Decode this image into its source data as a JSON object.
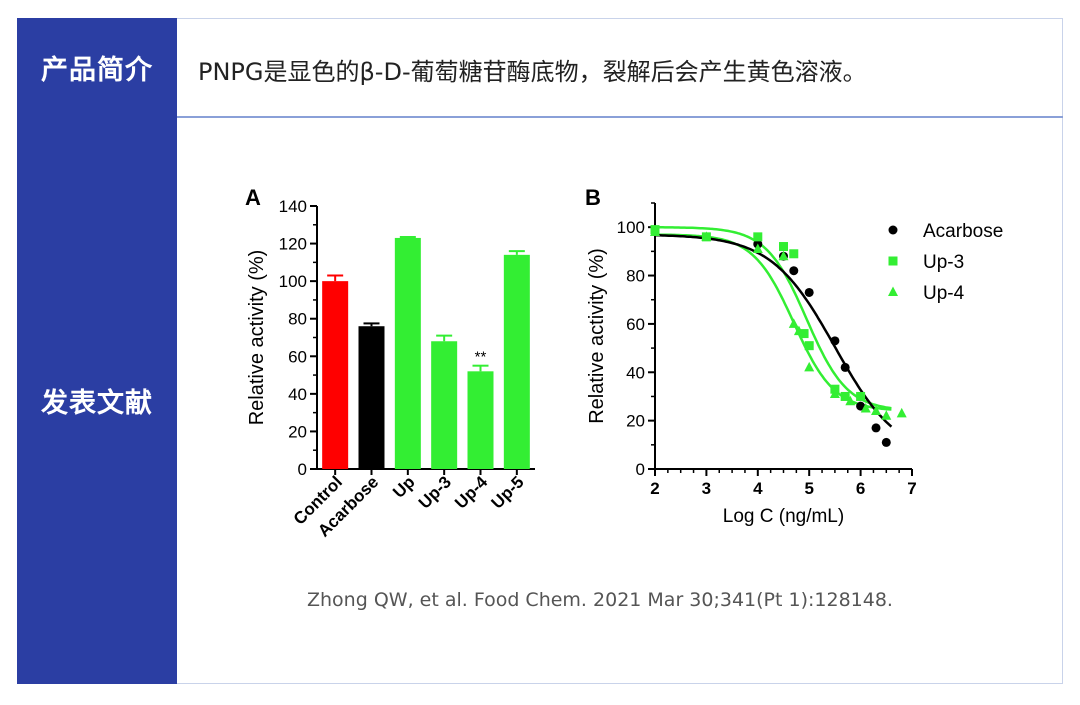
{
  "labels": {
    "intro_label": "产品简介",
    "papers_label": "发表文献"
  },
  "intro_text": "PNPG是显色的β-D-葡萄糖苷酶底物，裂解后会产生黄色溶液。",
  "citation": "Zhong QW, et al. Food Chem. 2021 Mar 30;341(Pt 1):128148.",
  "colors": {
    "header_bg": "#2b3ea3",
    "red": "#ff0000",
    "black": "#000000",
    "green": "#33ee33"
  },
  "chart_data": [
    {
      "panel": "A",
      "type": "bar",
      "ylabel": "Relative activity (%)",
      "ylim": [
        0,
        140
      ],
      "yticks": [
        0,
        20,
        40,
        60,
        80,
        100,
        120,
        140
      ],
      "categories": [
        "Control",
        "Acarbose",
        "Up",
        "Up-3",
        "Up-4",
        "Up-5"
      ],
      "values": [
        100,
        76,
        123,
        68,
        52,
        114
      ],
      "errors": [
        3,
        1.5,
        0.5,
        3,
        3,
        2
      ],
      "bar_colors": [
        "#ff0000",
        "#000000",
        "#33ee33",
        "#33ee33",
        "#33ee33",
        "#33ee33"
      ],
      "annotation": {
        "category": "Up-4",
        "text": "**"
      }
    },
    {
      "panel": "B",
      "type": "scatter",
      "xlabel": "Log C (ng/mL)",
      "ylabel": "Relative activity (%)",
      "xlim": [
        2,
        7
      ],
      "ylim": [
        0,
        110
      ],
      "xticks": [
        2,
        3,
        4,
        5,
        6,
        7
      ],
      "yticks": [
        0,
        20,
        40,
        60,
        80,
        100
      ],
      "legend_position": "top-right",
      "series": [
        {
          "name": "Acarbose",
          "marker": "circle",
          "color": "#000000",
          "points": [
            [
              4.0,
              93
            ],
            [
              4.5,
              88
            ],
            [
              4.7,
              82
            ],
            [
              5.0,
              73
            ],
            [
              5.5,
              53
            ],
            [
              5.7,
              42
            ],
            [
              6.0,
              26
            ],
            [
              6.3,
              17
            ],
            [
              6.5,
              11
            ]
          ],
          "curve": {
            "top": 97,
            "bottom": 4,
            "logIC50": 5.5,
            "hill": 0.7
          }
        },
        {
          "name": "Up-3",
          "marker": "square",
          "color": "#33ee33",
          "points": [
            [
              2.0,
              99
            ],
            [
              3.0,
              96
            ],
            [
              4.0,
              96
            ],
            [
              4.5,
              92
            ],
            [
              4.7,
              89
            ],
            [
              4.9,
              56
            ],
            [
              5.0,
              51
            ],
            [
              5.5,
              33
            ],
            [
              5.7,
              30
            ],
            [
              6.0,
              30
            ]
          ],
          "curve": {
            "top": 100,
            "bottom": 24,
            "logIC50": 4.95,
            "hill": 1.1
          }
        },
        {
          "name": "Up-4",
          "marker": "triangle",
          "color": "#33ee33",
          "points": [
            [
              2.0,
              98
            ],
            [
              3.0,
              96
            ],
            [
              4.0,
              91
            ],
            [
              4.5,
              88
            ],
            [
              4.7,
              60
            ],
            [
              4.8,
              57
            ],
            [
              5.0,
              42
            ],
            [
              5.5,
              31
            ],
            [
              5.8,
              28
            ],
            [
              6.1,
              25
            ],
            [
              6.3,
              24
            ],
            [
              6.5,
              22
            ],
            [
              6.8,
              23
            ]
          ],
          "curve": {
            "top": 97,
            "bottom": 24,
            "logIC50": 4.7,
            "hill": 1.1
          }
        }
      ]
    }
  ]
}
